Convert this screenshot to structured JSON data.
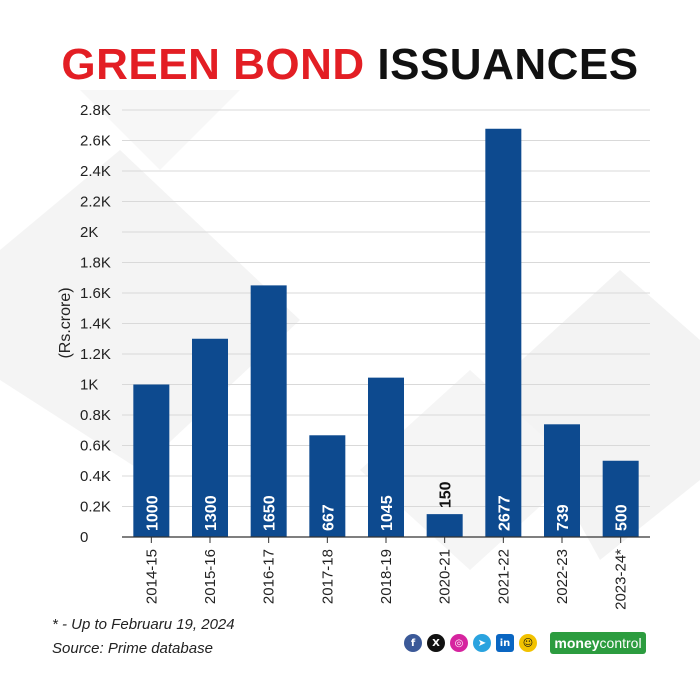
{
  "title": {
    "part1": "GREEN BOND",
    "part2": "ISSUANCES"
  },
  "chart_data": {
    "type": "bar",
    "title": "GREEN BOND ISSUANCES",
    "ylabel": "(Rs.crore)",
    "xlabel": "",
    "categories": [
      "2014-15",
      "2015-16",
      "2016-17",
      "2017-18",
      "2018-19",
      "2020-21",
      "2021-22",
      "2022-23",
      "2023-24*"
    ],
    "values": [
      1000,
      1300,
      1650,
      667,
      1045,
      150,
      2677,
      739,
      500
    ],
    "data_labels": [
      "1000",
      "1300",
      "1650",
      "667",
      "1045",
      "150",
      "2677",
      "739",
      "500"
    ],
    "ylim": [
      0,
      2800
    ],
    "yticks": [
      0,
      200,
      400,
      600,
      800,
      1000,
      1200,
      1400,
      1600,
      1800,
      2000,
      2200,
      2400,
      2600,
      2800
    ],
    "ytick_labels": [
      "0",
      "0.2K",
      "0.4K",
      "0.6K",
      "0.8K",
      "1K",
      "1.2K",
      "1.4K",
      "1.6K",
      "1.8K",
      "2K",
      "2.2K",
      "2.4K",
      "2.6K",
      "2.8K"
    ],
    "bar_color": "#0d4a8f",
    "grid": true,
    "legend": "none"
  },
  "footnotes": {
    "note": "* - Up to Februaru 19, 2024",
    "source": "Source: Prime database"
  },
  "social_icons": [
    "facebook-icon",
    "x-icon",
    "instagram-icon",
    "telegram-icon",
    "linkedin-icon",
    "snapchat-icon"
  ],
  "brand": {
    "part1": "money",
    "part2": "control",
    "color": "#2c9c3f"
  }
}
